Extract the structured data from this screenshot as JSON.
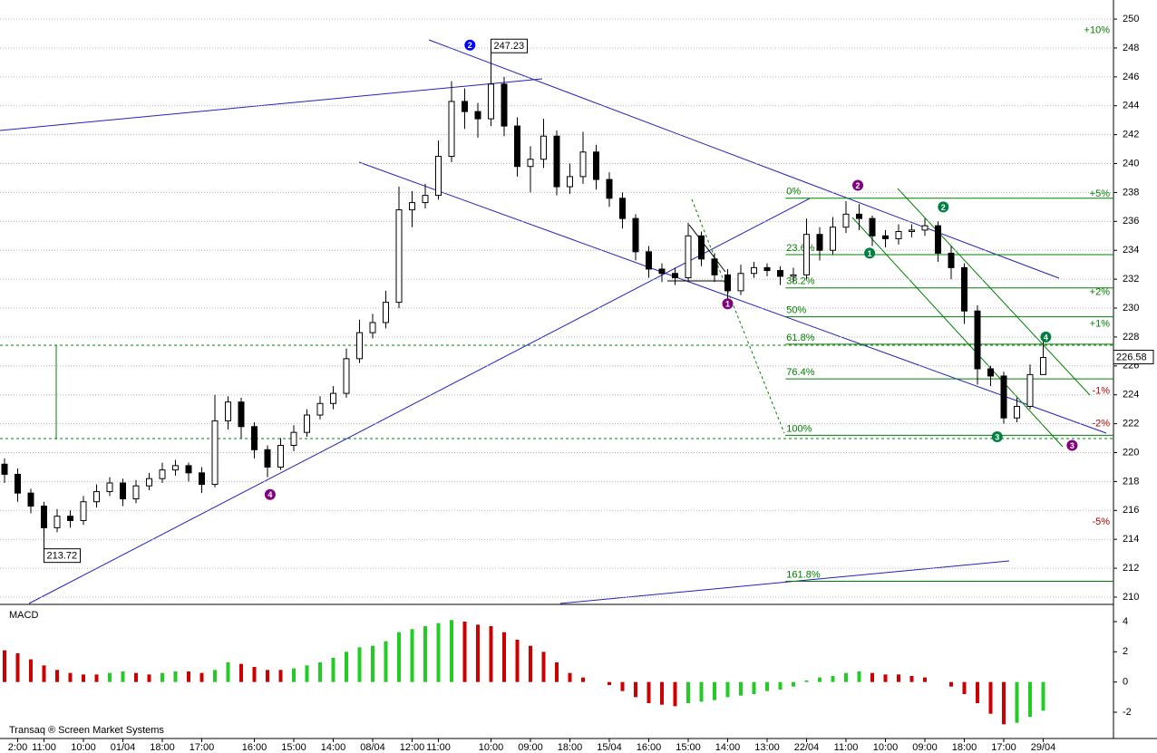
{
  "chart_data": {
    "type": "candlestick",
    "footer": "Transaq ® Screen Market Systems",
    "ylim": [
      209.56,
      251.32
    ],
    "yticks": [
      210,
      212,
      214,
      216,
      218,
      220,
      222,
      224,
      226,
      228,
      230,
      232,
      234,
      236,
      238,
      240,
      242,
      244,
      246,
      248,
      250
    ],
    "grid": true,
    "up_color": "#ffffff",
    "down_color": "#000000",
    "xticks": [
      {
        "value": 1,
        "label": "2:00"
      },
      {
        "value": 3,
        "label": "11:00"
      },
      {
        "value": 6,
        "label": "10:00"
      },
      {
        "value": 9,
        "label": "01/04"
      },
      {
        "value": 12,
        "label": "18:00"
      },
      {
        "value": 15,
        "label": "17:00"
      },
      {
        "value": 19,
        "label": "16:00"
      },
      {
        "value": 22,
        "label": "15:00"
      },
      {
        "value": 25,
        "label": "14:00"
      },
      {
        "value": 28,
        "label": "08/04"
      },
      {
        "value": 31,
        "label": "12:00"
      },
      {
        "value": 33,
        "label": "11:00"
      },
      {
        "value": 37,
        "label": "10:00"
      },
      {
        "value": 40,
        "label": "09:00"
      },
      {
        "value": 43,
        "label": "18:00"
      },
      {
        "value": 46,
        "label": "15/04"
      },
      {
        "value": 49,
        "label": "16:00"
      },
      {
        "value": 52,
        "label": "15:00"
      },
      {
        "value": 55,
        "label": "14:00"
      },
      {
        "value": 58,
        "label": "13:00"
      },
      {
        "value": 61,
        "label": "22/04"
      },
      {
        "value": 64,
        "label": "11:00"
      },
      {
        "value": 67,
        "label": "10:00"
      },
      {
        "value": 70,
        "label": "09:00"
      },
      {
        "value": 73,
        "label": "18:00"
      },
      {
        "value": 76,
        "label": "17:00"
      },
      {
        "value": 79,
        "label": "29/04"
      }
    ],
    "open": [
      219.2,
      218.5,
      217.2,
      216.3,
      214.8,
      215.6,
      215.3,
      216.6,
      217.3,
      217.9,
      216.8,
      217.7,
      218.2,
      218.8,
      219.1,
      218.6,
      217.8,
      222.2,
      223.5,
      221.8,
      220.2,
      219.0,
      220.5,
      221.4,
      222.6,
      223.4,
      224.1,
      226.5,
      228.3,
      229.0,
      230.4,
      236.8,
      237.3,
      237.8,
      240.5,
      244.3,
      243.6,
      243.1,
      245.5,
      242.6,
      239.8,
      240.3,
      241.9,
      238.4,
      239.1,
      240.8,
      238.9,
      237.6,
      236.2,
      233.9,
      232.7,
      232.4,
      232.1,
      235.0,
      233.4,
      232.3,
      231.2,
      232.4,
      232.8,
      232.6,
      232.2,
      232.3,
      235.1,
      234.0,
      235.6,
      236.5,
      236.2,
      235.0,
      234.8,
      235.3,
      235.4,
      235.7,
      233.8,
      232.8,
      229.8,
      225.8,
      225.3,
      222.4,
      223.2,
      225.4
    ],
    "high": [
      219.6,
      218.9,
      217.5,
      216.6,
      216.1,
      216.0,
      217.0,
      217.8,
      218.3,
      218.2,
      218.1,
      218.6,
      219.3,
      219.5,
      219.3,
      219.0,
      224.0,
      223.9,
      223.8,
      222.1,
      220.5,
      221.0,
      221.9,
      223.0,
      223.9,
      224.6,
      227.2,
      229.2,
      229.6,
      231.2,
      238.4,
      238.1,
      238.6,
      241.6,
      245.7,
      245.2,
      244.2,
      247.23,
      246.0,
      243.2,
      241.2,
      243.1,
      242.3,
      240.0,
      242.2,
      241.3,
      239.4,
      238.0,
      236.5,
      234.3,
      233.1,
      232.8,
      235.9,
      235.3,
      233.8,
      232.7,
      233.0,
      233.2,
      233.1,
      232.9,
      232.8,
      236.2,
      235.6,
      236.3,
      237.4,
      237.2,
      236.4,
      235.4,
      235.8,
      235.8,
      236.2,
      236.0,
      234.3,
      233.1,
      230.2,
      226.0,
      225.6,
      223.8,
      226.1,
      227.8
    ],
    "low": [
      217.9,
      216.6,
      215.8,
      213.72,
      214.5,
      214.8,
      215.0,
      216.2,
      217.0,
      216.3,
      216.5,
      217.4,
      217.9,
      218.4,
      218.0,
      217.2,
      217.6,
      221.6,
      221.0,
      219.6,
      218.3,
      218.8,
      220.1,
      221.1,
      222.3,
      223.0,
      223.8,
      226.2,
      227.9,
      228.6,
      230.0,
      235.6,
      236.9,
      237.5,
      240.1,
      242.4,
      241.8,
      242.6,
      241.9,
      239.1,
      238.0,
      239.7,
      237.8,
      237.9,
      238.6,
      238.2,
      237.0,
      235.5,
      233.3,
      232.1,
      231.8,
      231.6,
      231.9,
      232.9,
      231.8,
      230.6,
      230.9,
      232.1,
      232.2,
      231.6,
      231.8,
      232.0,
      233.3,
      233.7,
      235.2,
      235.4,
      234.3,
      234.2,
      234.4,
      234.9,
      235.0,
      233.2,
      232.0,
      228.9,
      224.7,
      224.6,
      222.0,
      222.1,
      223.0,
      225.7
    ],
    "close": [
      218.5,
      217.2,
      216.3,
      214.8,
      215.6,
      215.3,
      216.6,
      217.3,
      217.9,
      216.8,
      217.7,
      218.2,
      218.8,
      219.1,
      218.6,
      217.8,
      222.2,
      223.5,
      221.8,
      220.2,
      219.0,
      220.5,
      221.4,
      222.6,
      223.4,
      224.1,
      226.5,
      228.3,
      229.0,
      230.4,
      236.8,
      237.3,
      237.8,
      240.5,
      244.3,
      243.6,
      243.1,
      245.5,
      242.6,
      239.8,
      240.3,
      241.9,
      238.4,
      239.1,
      240.8,
      238.9,
      237.6,
      236.2,
      233.9,
      232.7,
      232.4,
      232.1,
      235.0,
      233.4,
      232.3,
      231.2,
      232.4,
      232.8,
      232.6,
      232.2,
      232.3,
      235.1,
      234.0,
      235.6,
      236.5,
      236.2,
      235.0,
      234.8,
      235.3,
      235.4,
      235.7,
      233.8,
      232.8,
      229.8,
      225.8,
      225.3,
      222.4,
      223.2,
      225.4,
      226.58
    ],
    "fib_from": 59.4,
    "fib_color": "#008000",
    "fib": [
      {
        "label": "0%",
        "price": 237.6
      },
      {
        "label": "23.6%",
        "price": 233.7
      },
      {
        "label": "38.2%",
        "price": 231.4
      },
      {
        "label": "50%",
        "price": 229.4
      },
      {
        "label": "61.8%",
        "price": 227.5
      },
      {
        "label": "76.4%",
        "price": 225.1
      },
      {
        "label": "100%",
        "price": 221.2
      },
      {
        "label": "161.8%",
        "price": 211.1
      }
    ],
    "percent_labels": [
      {
        "text": "+10%",
        "price": 249.2,
        "color": "#008000"
      },
      {
        "text": "+5%",
        "price": 237.9,
        "color": "#008000"
      },
      {
        "text": "+2%",
        "price": 231.1,
        "color": "#008000"
      },
      {
        "text": "+1%",
        "price": 228.9,
        "color": "#008000"
      },
      {
        "text": "-1%",
        "price": 224.25,
        "color": "#c00000"
      },
      {
        "text": "-2%",
        "price": 222.0,
        "color": "#c00000"
      },
      {
        "text": "-5%",
        "price": 215.2,
        "color": "#c00000"
      }
    ],
    "waves": [
      {
        "label": "2",
        "x": 35.4,
        "price": 248.2,
        "color": "#0000ff"
      },
      {
        "label": "4",
        "x": 20.2,
        "price": 217.1,
        "color": "#800080"
      },
      {
        "label": "1",
        "x": 55,
        "price": 230.3,
        "color": "#800080"
      },
      {
        "label": "2",
        "x": 64.9,
        "price": 238.5,
        "color": "#800080"
      },
      {
        "label": "1",
        "x": 65.8,
        "price": 233.8,
        "color": "#008040"
      },
      {
        "label": "2",
        "x": 71.4,
        "price": 237.0,
        "color": "#008040"
      },
      {
        "label": "3",
        "x": 75.5,
        "price": 221.1,
        "color": "#008040"
      },
      {
        "label": "3",
        "x": 81.2,
        "price": 220.5,
        "color": "#800080"
      },
      {
        "label": "4",
        "x": 79.2,
        "price": 228.0,
        "color": "#008040"
      }
    ],
    "macd": {
      "title": "MACD",
      "ylim": [
        -3.74,
        5.08
      ],
      "yticks": [
        -2,
        0,
        2,
        4
      ],
      "up_color": "#22cc22",
      "down_color": "#cc0000",
      "values": [
        2.1,
        1.9,
        1.5,
        1.1,
        0.8,
        0.6,
        0.5,
        0.5,
        0.6,
        0.7,
        0.6,
        0.5,
        0.6,
        0.7,
        0.7,
        0.6,
        0.8,
        1.3,
        1.2,
        1.0,
        0.8,
        0.8,
        0.9,
        1.1,
        1.3,
        1.6,
        2.0,
        2.3,
        2.4,
        2.7,
        3.3,
        3.5,
        3.7,
        3.9,
        4.1,
        4.0,
        3.8,
        3.7,
        3.3,
        2.8,
        2.4,
        2.0,
        1.3,
        0.6,
        0.3,
        0.0,
        -0.2,
        -0.6,
        -1.0,
        -1.4,
        -1.5,
        -1.6,
        -1.4,
        -1.3,
        -1.2,
        -1.0,
        -0.9,
        -0.8,
        -0.6,
        -0.5,
        -0.3,
        0.1,
        0.3,
        0.4,
        0.6,
        0.7,
        0.6,
        0.5,
        0.5,
        0.4,
        0.3,
        0.0,
        -0.3,
        -0.8,
        -1.4,
        -2.1,
        -2.8,
        -2.7,
        -2.3,
        -1.9
      ]
    }
  }
}
